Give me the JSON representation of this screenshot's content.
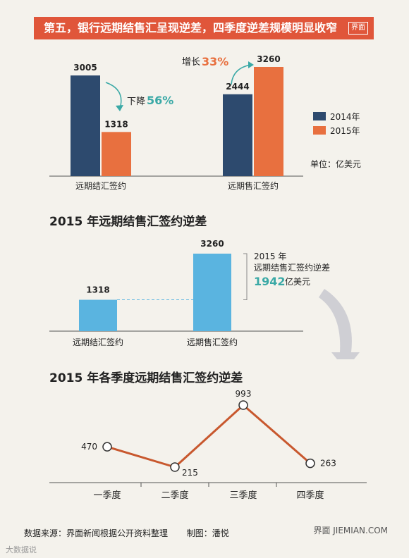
{
  "banner": {
    "title": "第五，银行远期结售汇呈现逆差，四季度逆差规模明显收窄",
    "logo": "界面"
  },
  "chart_data": [
    {
      "type": "bar",
      "categories": [
        "远期结汇签约",
        "远期售汇签约"
      ],
      "series": [
        {
          "name": "2014年",
          "values": [
            3005,
            2444
          ],
          "color": "#2d4a6e"
        },
        {
          "name": "2015年",
          "values": [
            1318,
            3260
          ],
          "color": "#e8703f"
        }
      ],
      "unit_label": "单位：亿美元",
      "annotations": [
        {
          "text_prefix": "下降",
          "text_value": "56%"
        },
        {
          "text_prefix": "增长",
          "text_value": "33%"
        }
      ],
      "legend_position": "right"
    },
    {
      "type": "bar",
      "title": "2015 年远期结售汇签约逆差",
      "categories": [
        "远期结汇签约",
        "远期售汇签约"
      ],
      "values": [
        1318,
        3260
      ],
      "color": "#5ab4e0",
      "annotation": {
        "line1": "2015 年",
        "line2": "远期结售汇签约逆差",
        "value": "1942",
        "unit": "亿美元"
      }
    },
    {
      "type": "line",
      "title": "2015 年各季度远期结售汇签约逆差",
      "categories": [
        "一季度",
        "二季度",
        "三季度",
        "四季度"
      ],
      "values": [
        470,
        215,
        993,
        263
      ],
      "color": "#c8582e"
    }
  ],
  "footer": {
    "source": "数据来源：界面新闻根据公开资料整理",
    "author": "制图：潘悦",
    "logo": "界面 JIEMIAN.COM"
  },
  "watermark": "大数据说"
}
